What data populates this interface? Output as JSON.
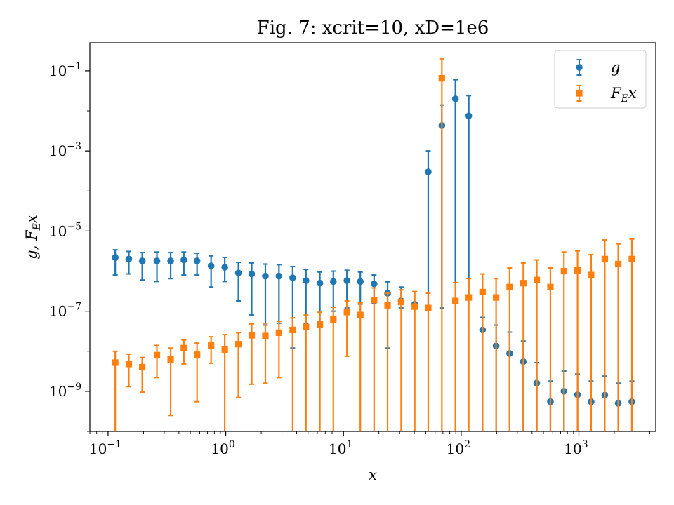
{
  "chart_data": {
    "type": "scatter",
    "title": "Fig. 7: xcrit=10, xD=1e6",
    "xlabel": "x",
    "ylabel": "g,  F_E x",
    "xscale": "log",
    "yscale": "log",
    "xlim": [
      0.07,
      4500
    ],
    "ylim": [
      1e-10,
      0.5
    ],
    "xticks": [
      {
        "value": 0.1,
        "base": "10",
        "exp": "−1"
      },
      {
        "value": 1,
        "base": "10",
        "exp": "0"
      },
      {
        "value": 10,
        "base": "10",
        "exp": "1"
      },
      {
        "value": 100,
        "base": "10",
        "exp": "2"
      },
      {
        "value": 1000,
        "base": "10",
        "exp": "3"
      }
    ],
    "yticks": [
      {
        "value": 1e-09,
        "base": "10",
        "exp": "−9"
      },
      {
        "value": 1e-07,
        "base": "10",
        "exp": "−7"
      },
      {
        "value": 1e-05,
        "base": "10",
        "exp": "−5"
      },
      {
        "value": 0.001,
        "base": "10",
        "exp": "−3"
      },
      {
        "value": 0.1,
        "base": "10",
        "exp": "−1"
      }
    ],
    "legend_position": "top-right",
    "series": [
      {
        "name": "g",
        "label_main": "g",
        "label_sub": "",
        "label_tail": "",
        "marker": "circle",
        "color": "#1f77b4",
        "points": [
          {
            "x": 0.115,
            "y": 2.2e-06,
            "lo": 8e-07,
            "hi": 3.4e-06
          },
          {
            "x": 0.15,
            "y": 2e-06,
            "lo": 8.5e-07,
            "hi": 3.1e-06
          },
          {
            "x": 0.195,
            "y": 1.8e-06,
            "lo": 6e-07,
            "hi": 2.9e-06
          },
          {
            "x": 0.26,
            "y": 1.8e-06,
            "lo": 5.5e-07,
            "hi": 3e-06
          },
          {
            "x": 0.34,
            "y": 1.8e-06,
            "lo": 6.5e-07,
            "hi": 2.9e-06
          },
          {
            "x": 0.44,
            "y": 1.9e-06,
            "lo": 8e-07,
            "hi": 3e-06
          },
          {
            "x": 0.57,
            "y": 1.8e-06,
            "lo": 8e-07,
            "hi": 2.8e-06
          },
          {
            "x": 0.75,
            "y": 1.35e-06,
            "lo": 4e-07,
            "hi": 2.4e-06
          },
          {
            "x": 0.98,
            "y": 1.25e-06,
            "lo": 5.5e-07,
            "hi": 2.2e-06
          },
          {
            "x": 1.28,
            "y": 9e-07,
            "lo": 1.8e-07,
            "hi": 1.65e-06
          },
          {
            "x": 1.66,
            "y": 8.5e-07,
            "lo": 8e-08,
            "hi": 1.6e-06
          },
          {
            "x": 2.17,
            "y": 7.5e-07,
            "lo": 4.5e-08,
            "hi": 1.5e-06
          },
          {
            "x": 2.83,
            "y": 7.5e-07,
            "lo": 5e-08,
            "hi": 1.45e-06
          },
          {
            "x": 3.7,
            "y": 6.8e-07,
            "lo": 1.2e-08,
            "hi": 1.3e-06
          },
          {
            "x": 4.8,
            "y": 5.8e-07,
            "lo": 5e-08,
            "hi": 1.1e-06
          },
          {
            "x": 6.3,
            "y": 5e-07,
            "lo": 4e-08,
            "hi": 9.5e-07
          },
          {
            "x": 8.2,
            "y": 5.5e-07,
            "lo": 1e-07,
            "hi": 1e-06
          },
          {
            "x": 10.7,
            "y": 5.8e-07,
            "lo": 1.2e-07,
            "hi": 1.05e-06
          },
          {
            "x": 13.9,
            "y": 5.5e-07,
            "lo": 1.5e-07,
            "hi": 9.5e-07
          },
          {
            "x": 18.2,
            "y": 4.8e-07,
            "lo": 1.6e-07,
            "hi": 8e-07
          },
          {
            "x": 23.7,
            "y": 2.8e-07,
            "lo": 1.2e-08,
            "hi": 5.4e-07
          },
          {
            "x": 30.9,
            "y": 1.8e-07,
            "lo": 1.2e-07,
            "hi": 4e-07
          },
          {
            "x": 40.3,
            "y": 1.5e-07,
            "lo": 1.15e-07,
            "hi": 1.6e-07
          },
          {
            "x": 52.5,
            "y": 0.0003,
            "lo": 1.2e-07,
            "hi": 0.001
          },
          {
            "x": 68.5,
            "y": 0.0043,
            "lo": 1.2e-07,
            "hi": 0.014
          },
          {
            "x": 89.3,
            "y": 0.02,
            "lo": 1.7e-07,
            "hi": 0.06
          },
          {
            "x": 116,
            "y": 0.0075,
            "lo": 2e-07,
            "hi": 0.024
          },
          {
            "x": 152,
            "y": 3.4e-08,
            "lo": 1e-10,
            "hi": 7e-08
          },
          {
            "x": 198,
            "y": 1.35e-08,
            "lo": 1e-10,
            "hi": 4.5e-08
          },
          {
            "x": 258,
            "y": 8.8e-09,
            "lo": 1e-10,
            "hi": 3e-08
          },
          {
            "x": 337,
            "y": 5.5e-09,
            "lo": 1e-10,
            "hi": 1.8e-08
          },
          {
            "x": 439,
            "y": 1.6e-09,
            "lo": 1e-10,
            "hi": 5.2e-09
          },
          {
            "x": 573,
            "y": 5.5e-10,
            "lo": 1e-10,
            "hi": 1.8e-09
          },
          {
            "x": 747,
            "y": 1e-09,
            "lo": 1e-10,
            "hi": 3.2e-09
          },
          {
            "x": 974,
            "y": 8.2e-10,
            "lo": 1e-10,
            "hi": 2.7e-09
          },
          {
            "x": 1270,
            "y": 5.5e-10,
            "lo": 1e-10,
            "hi": 1.8e-09
          },
          {
            "x": 1660,
            "y": 8e-10,
            "lo": 1e-10,
            "hi": 2.4e-09
          },
          {
            "x": 2160,
            "y": 5e-10,
            "lo": 1e-10,
            "hi": 1.6e-09
          },
          {
            "x": 2820,
            "y": 5.5e-10,
            "lo": 1e-10,
            "hi": 1.8e-09
          }
        ]
      },
      {
        "name": "F_E x",
        "label_main": "F",
        "label_sub": "E",
        "label_tail": "x",
        "marker": "square",
        "color": "#ff7f0e",
        "points": [
          {
            "x": 0.115,
            "y": 5.2e-09,
            "lo": 1e-10,
            "hi": 1e-08
          },
          {
            "x": 0.15,
            "y": 4.8e-09,
            "lo": 1.3e-09,
            "hi": 8.5e-09
          },
          {
            "x": 0.195,
            "y": 4e-09,
            "lo": 9.5e-10,
            "hi": 7e-09
          },
          {
            "x": 0.26,
            "y": 8e-09,
            "lo": 2.2e-09,
            "hi": 1.4e-08
          },
          {
            "x": 0.34,
            "y": 6.2e-09,
            "lo": 2.5e-10,
            "hi": 1.2e-08
          },
          {
            "x": 0.44,
            "y": 1.2e-08,
            "lo": 4.8e-09,
            "hi": 1.9e-08
          },
          {
            "x": 0.57,
            "y": 8.2e-09,
            "lo": 5.5e-10,
            "hi": 1.6e-08
          },
          {
            "x": 0.75,
            "y": 1.4e-08,
            "lo": 5e-09,
            "hi": 2.3e-08
          },
          {
            "x": 0.98,
            "y": 1.1e-08,
            "lo": 1e-10,
            "hi": 2.6e-08
          },
          {
            "x": 1.28,
            "y": 1.5e-08,
            "lo": 7e-10,
            "hi": 2.9e-08
          },
          {
            "x": 1.66,
            "y": 2.5e-08,
            "lo": 1.5e-09,
            "hi": 4.8e-08
          },
          {
            "x": 2.17,
            "y": 2.4e-08,
            "lo": 1.6e-09,
            "hi": 5e-08
          },
          {
            "x": 2.83,
            "y": 2.9e-08,
            "lo": 2.2e-09,
            "hi": 5.6e-08
          },
          {
            "x": 3.7,
            "y": 3.4e-08,
            "lo": 1e-10,
            "hi": 6.8e-08
          },
          {
            "x": 4.8,
            "y": 4e-08,
            "lo": 1e-10,
            "hi": 8e-08
          },
          {
            "x": 6.3,
            "y": 4.7e-08,
            "lo": 1e-10,
            "hi": 9.4e-08
          },
          {
            "x": 8.2,
            "y": 6.2e-08,
            "lo": 1e-10,
            "hi": 1.25e-07
          },
          {
            "x": 10.7,
            "y": 9.5e-08,
            "lo": 7.5e-09,
            "hi": 1.8e-07
          },
          {
            "x": 13.9,
            "y": 8e-08,
            "lo": 1e-10,
            "hi": 1.6e-07
          },
          {
            "x": 18.2,
            "y": 1.9e-07,
            "lo": 1e-10,
            "hi": 3.8e-07
          },
          {
            "x": 23.7,
            "y": 1.4e-07,
            "lo": 1e-10,
            "hi": 2.8e-07
          },
          {
            "x": 30.9,
            "y": 1.7e-07,
            "lo": 1e-10,
            "hi": 3.4e-07
          },
          {
            "x": 40.3,
            "y": 1.3e-07,
            "lo": 1e-10,
            "hi": 3.1e-07
          },
          {
            "x": 52.5,
            "y": 1.2e-07,
            "lo": 1e-10,
            "hi": 2.8e-07
          },
          {
            "x": 68.5,
            "y": 0.065,
            "lo": 1e-10,
            "hi": 0.2
          },
          {
            "x": 89.3,
            "y": 1.8e-07,
            "lo": 1e-10,
            "hi": 5.2e-07
          },
          {
            "x": 116,
            "y": 2.2e-07,
            "lo": 1e-10,
            "hi": 6.5e-07
          },
          {
            "x": 152,
            "y": 3e-07,
            "lo": 1e-10,
            "hi": 8.5e-07
          },
          {
            "x": 198,
            "y": 2.2e-07,
            "lo": 1e-10,
            "hi": 6.5e-07
          },
          {
            "x": 258,
            "y": 4e-07,
            "lo": 1e-10,
            "hi": 1.2e-06
          },
          {
            "x": 337,
            "y": 5e-07,
            "lo": 1e-10,
            "hi": 1.6e-06
          },
          {
            "x": 439,
            "y": 6e-07,
            "lo": 1e-10,
            "hi": 1.9e-06
          },
          {
            "x": 573,
            "y": 4e-07,
            "lo": 1e-10,
            "hi": 1.2e-06
          },
          {
            "x": 747,
            "y": 1e-06,
            "lo": 1e-10,
            "hi": 3e-06
          },
          {
            "x": 974,
            "y": 1.05e-06,
            "lo": 1e-10,
            "hi": 3.2e-06
          },
          {
            "x": 1270,
            "y": 8e-07,
            "lo": 1e-10,
            "hi": 2.6e-06
          },
          {
            "x": 1660,
            "y": 2e-06,
            "lo": 1e-10,
            "hi": 6e-06
          },
          {
            "x": 2160,
            "y": 1.5e-06,
            "lo": 1e-10,
            "hi": 4.8e-06
          },
          {
            "x": 2820,
            "y": 2e-06,
            "lo": 1e-10,
            "hi": 6.3e-06
          }
        ]
      }
    ]
  }
}
